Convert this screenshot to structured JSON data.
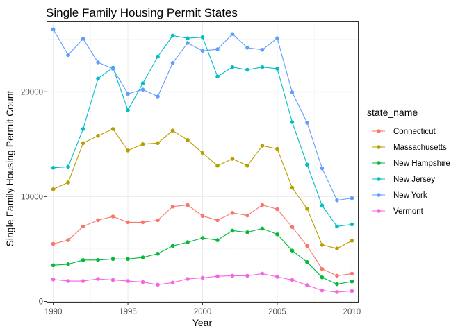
{
  "chart_data": {
    "type": "line",
    "title": "Single Family Housing Permit States",
    "xlabel": "Year",
    "ylabel": "Single Family Housing Permit Count",
    "legend_title": "state_name",
    "legend_position": "right",
    "grid": true,
    "xlim": [
      1989.6,
      2010.4
    ],
    "ylim": [
      -100,
      26700
    ],
    "x_ticks": [
      1990,
      1995,
      2000,
      2005,
      2010
    ],
    "y_ticks": [
      0,
      10000,
      20000
    ],
    "y_tick_labels": [
      "0",
      "10000",
      "20000"
    ],
    "x": [
      1990,
      1991,
      1992,
      1993,
      1994,
      1995,
      1996,
      1997,
      1998,
      1999,
      2000,
      2001,
      2002,
      2003,
      2004,
      2005,
      2006,
      2007,
      2008,
      2009,
      2010
    ],
    "series": [
      {
        "name": "Connecticut",
        "color": "#F8766D",
        "values": [
          5500,
          5850,
          7150,
          7750,
          8100,
          7550,
          7550,
          7750,
          9050,
          9200,
          8150,
          7750,
          8450,
          8200,
          9200,
          8800,
          7100,
          5300,
          3100,
          2450,
          2650
        ]
      },
      {
        "name": "Massachusetts",
        "color": "#B79F00",
        "values": [
          10700,
          11350,
          15100,
          15800,
          16450,
          14400,
          15000,
          15100,
          16300,
          15400,
          14150,
          12950,
          13600,
          12950,
          14850,
          14550,
          10850,
          8850,
          5400,
          5050,
          5800
        ]
      },
      {
        "name": "New Hampshire",
        "color": "#00BA38",
        "values": [
          3450,
          3550,
          3950,
          3950,
          4050,
          4050,
          4200,
          4550,
          5300,
          5650,
          6050,
          5850,
          6750,
          6600,
          6950,
          6400,
          4850,
          3750,
          2300,
          1650,
          1900
        ]
      },
      {
        "name": "New Jersey",
        "color": "#00BFC4",
        "values": [
          12750,
          12850,
          16450,
          21250,
          22300,
          18250,
          20800,
          23350,
          25350,
          25100,
          25200,
          21450,
          22350,
          22100,
          22350,
          22200,
          17100,
          13050,
          9150,
          7150,
          7350
        ]
      },
      {
        "name": "New York",
        "color": "#619CFF",
        "values": [
          25950,
          23500,
          25050,
          22800,
          22200,
          19800,
          20200,
          19550,
          22750,
          24650,
          23900,
          24050,
          25500,
          24200,
          24000,
          25100,
          19950,
          17050,
          12700,
          9650,
          9850
        ]
      },
      {
        "name": "Vermont",
        "color": "#F564E3",
        "values": [
          2100,
          1950,
          1950,
          2150,
          2050,
          1950,
          1850,
          1600,
          1800,
          2150,
          2250,
          2400,
          2450,
          2450,
          2650,
          2350,
          2050,
          1550,
          1050,
          900,
          1000
        ]
      }
    ]
  }
}
